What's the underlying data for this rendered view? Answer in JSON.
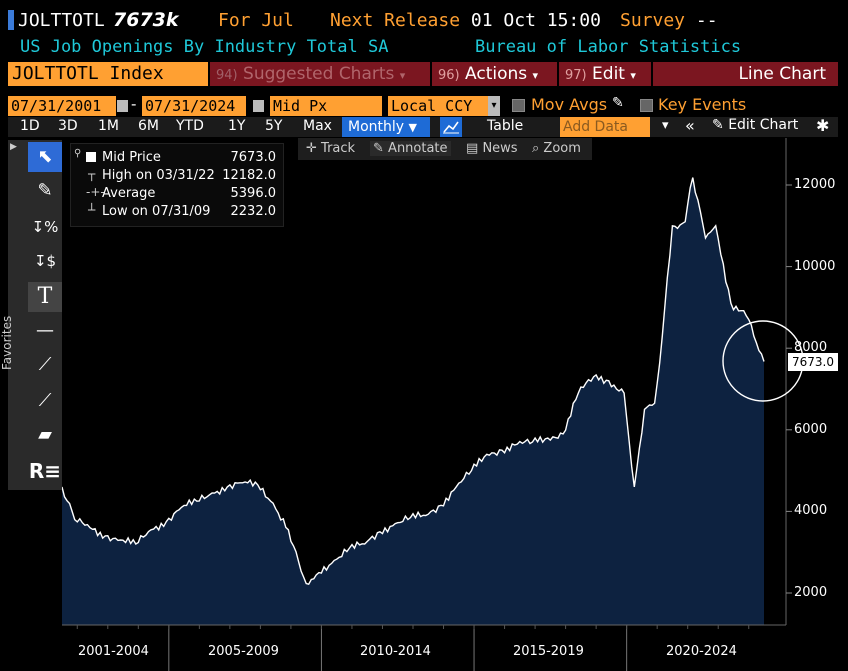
{
  "header": {
    "ticker": "JOLTTOTL",
    "last_value": "7673k",
    "for_period": "For Jul",
    "next_release_label": "Next Release",
    "next_release_value": "01 Oct 15:00",
    "survey_label": "Survey",
    "survey_value": "--",
    "description": "US Job Openings By Industry Total SA",
    "source": "Bureau of Labor Statistics"
  },
  "toolbar": {
    "security": "JOLTTOTL Index",
    "suggested_num": "94)",
    "suggested": "Suggested Charts",
    "actions_num": "96)",
    "actions": "Actions",
    "edit_num": "97)",
    "edit": "Edit",
    "chart_type": "Line Chart"
  },
  "params": {
    "start_date": "07/31/2001",
    "end_date": "07/31/2024",
    "field": "Mid Px",
    "currency": "Local CCY",
    "mov_avgs": "Mov Avgs",
    "key_events": "Key Events"
  },
  "periods": {
    "p1": "1D",
    "p2": "3D",
    "p3": "1M",
    "p4": "6M",
    "p5": "YTD",
    "p6": "1Y",
    "p7": "5Y",
    "p8": "Max",
    "frequency": "Monthly",
    "table": "Table",
    "add_data": "Add Data",
    "edit_chart": "Edit Chart"
  },
  "sidebar": {
    "favorites": "Favorites"
  },
  "annotate_bar": {
    "track": "Track",
    "annotate": "Annotate",
    "news": "News",
    "zoom": "Zoom"
  },
  "legend": {
    "mid_label": "Mid Price",
    "mid_value": "7673.0",
    "high_label": "High on 03/31/22",
    "high_value": "12182.0",
    "avg_label": "Average",
    "avg_value": "5396.0",
    "low_label": "Low on 07/31/09",
    "low_value": "2232.0"
  },
  "last_price_label": "7673.0",
  "colors": {
    "orange": "#ffa032",
    "cyan": "#1fc8d8",
    "maroon": "#7b1620",
    "area_fill": "#0d2240",
    "blue": "#1e6bd6"
  },
  "chart_data": {
    "type": "area",
    "ylim": [
      1300,
      13200
    ],
    "yticks": [
      "2000",
      "4000",
      "6000",
      "8000",
      "10000",
      "12000"
    ],
    "x_period_labels": [
      "2001-2004",
      "2005-2009",
      "2010-2014",
      "2015-2019",
      "2020-2024"
    ],
    "x_range": [
      "2001-07-31",
      "2024-07-31"
    ],
    "series": [
      {
        "x": [
          "2001-07",
          "2001-12",
          "2002-06",
          "2002-12",
          "2003-06",
          "2003-12",
          "2004-06",
          "2004-12",
          "2005-06",
          "2005-12",
          "2006-06",
          "2006-12",
          "2007-06",
          "2007-12",
          "2008-06",
          "2008-12",
          "2009-07",
          "2009-12",
          "2010-06",
          "2010-12",
          "2011-06",
          "2011-12",
          "2012-06",
          "2012-12",
          "2013-06",
          "2013-12",
          "2014-06",
          "2014-12",
          "2015-06",
          "2015-12",
          "2016-06",
          "2016-12",
          "2017-06",
          "2017-12",
          "2018-06",
          "2018-12",
          "2019-06",
          "2019-12",
          "2020-04",
          "2020-08",
          "2020-12",
          "2021-03",
          "2021-07",
          "2021-12",
          "2022-03",
          "2022-08",
          "2022-12",
          "2023-06",
          "2023-12",
          "2024-03",
          "2024-07"
        ],
        "y": [
          4600,
          3800,
          3600,
          3400,
          3300,
          3200,
          3550,
          3750,
          4100,
          4250,
          4450,
          4600,
          4700,
          4650,
          4200,
          3550,
          2232,
          2500,
          2800,
          3100,
          3200,
          3500,
          3700,
          3850,
          3900,
          4150,
          4600,
          5000,
          5400,
          5500,
          5650,
          5700,
          5800,
          5900,
          6900,
          7300,
          7200,
          6900,
          4600,
          6500,
          6650,
          8300,
          11000,
          11100,
          12182,
          10700,
          11000,
          9100,
          8800,
          8300,
          7673
        ]
      }
    ]
  }
}
